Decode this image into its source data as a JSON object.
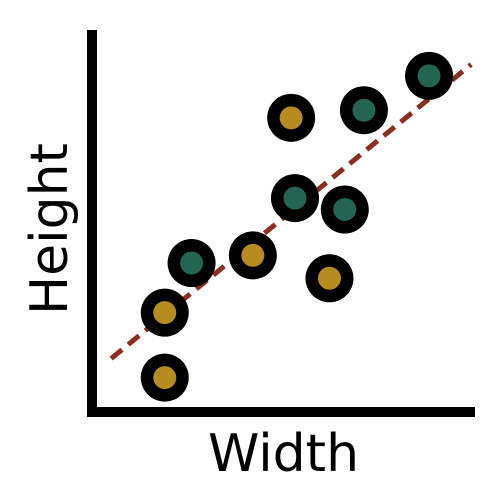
{
  "chart_data": {
    "type": "scatter",
    "title": "",
    "xlabel": "Width",
    "ylabel": "Height",
    "ticks_shown": false,
    "grid": false,
    "legend": "none",
    "xlim": [
      0,
      10
    ],
    "ylim": [
      0,
      10
    ],
    "series": [
      {
        "color": "#b68c1e",
        "points": [
          {
            "x": 1.9,
            "y": 0.9
          },
          {
            "x": 1.9,
            "y": 2.6
          },
          {
            "x": 4.2,
            "y": 4.1
          },
          {
            "x": 6.2,
            "y": 3.5
          },
          {
            "x": 5.2,
            "y": 7.7
          }
        ]
      },
      {
        "color": "#236552",
        "points": [
          {
            "x": 2.6,
            "y": 3.9
          },
          {
            "x": 5.3,
            "y": 5.6
          },
          {
            "x": 6.6,
            "y": 5.3
          },
          {
            "x": 7.1,
            "y": 7.9
          },
          {
            "x": 8.8,
            "y": 8.8
          }
        ]
      }
    ],
    "trendline": {
      "color": "#8b2e1e",
      "style": "dashed",
      "x": [
        0.5,
        9.9
      ],
      "y": [
        1.4,
        9.1
      ]
    },
    "colors": {
      "axes": "#000000",
      "marker_ring": "#000000",
      "background": "#ffffff"
    }
  }
}
